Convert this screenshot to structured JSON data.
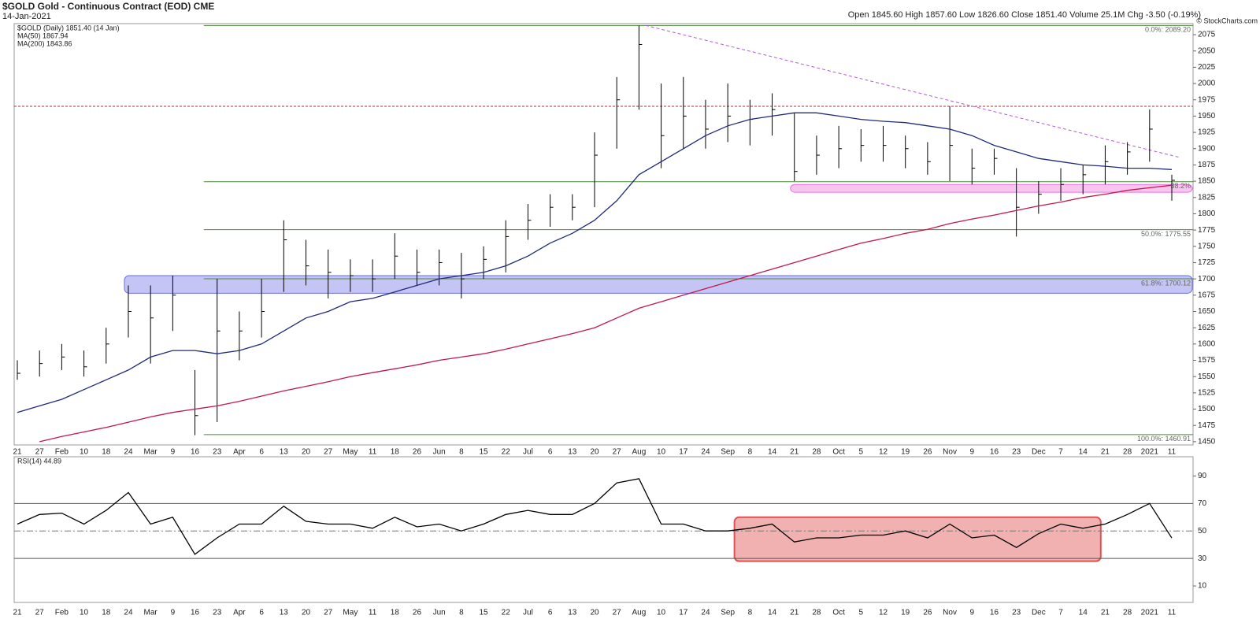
{
  "chart_data": {
    "type": "ohlc",
    "title": "$GOLD Gold - Continuous Contract (EOD) CME",
    "date": "14-Jan-2021",
    "quote": "Open 1845.60 High 1857.60 Low 1826.60 Close 1851.40 Volume 25.1M Chg -3.50 (-0.19%)",
    "credit": "© StockCharts.com",
    "legend": [
      "$GOLD (Daily) 1851.40 (14 Jan)",
      "MA(50) 1867.94",
      "MA(200) 1843.86"
    ],
    "categories": [
      "21",
      "27",
      "Feb",
      "10",
      "18",
      "24",
      "Mar",
      "9",
      "16",
      "23",
      "Apr",
      "6",
      "13",
      "20",
      "27",
      "May",
      "11",
      "18",
      "26",
      "Jun",
      "8",
      "15",
      "22",
      "Jul",
      "6",
      "13",
      "20",
      "27",
      "Aug",
      "10",
      "17",
      "24",
      "Sep",
      "8",
      "14",
      "21",
      "28",
      "Oct",
      "5",
      "12",
      "19",
      "26",
      "Nov",
      "9",
      "16",
      "23",
      "Dec",
      "7",
      "14",
      "21",
      "28",
      "2021",
      "11"
    ],
    "high": [
      1575,
      1590,
      1600,
      1590,
      1625,
      1690,
      1690,
      1705,
      1560,
      1700,
      1650,
      1700,
      1790,
      1760,
      1745,
      1730,
      1730,
      1770,
      1745,
      1745,
      1740,
      1750,
      1790,
      1815,
      1830,
      1830,
      1925,
      2010,
      2089,
      2000,
      2010,
      1975,
      2000,
      1975,
      1985,
      1955,
      1920,
      1935,
      1930,
      1935,
      1920,
      1910,
      1965,
      1900,
      1900,
      1870,
      1850,
      1870,
      1875,
      1905,
      1910,
      1960,
      1860
    ],
    "low": [
      1545,
      1550,
      1560,
      1550,
      1570,
      1610,
      1570,
      1620,
      1460,
      1480,
      1575,
      1610,
      1680,
      1690,
      1670,
      1680,
      1680,
      1700,
      1690,
      1690,
      1670,
      1700,
      1710,
      1760,
      1780,
      1790,
      1810,
      1900,
      1960,
      1870,
      1900,
      1900,
      1910,
      1905,
      1920,
      1850,
      1860,
      1870,
      1880,
      1880,
      1870,
      1860,
      1850,
      1845,
      1860,
      1765,
      1800,
      1820,
      1830,
      1845,
      1860,
      1880,
      1820
    ],
    "close": [
      1555,
      1570,
      1580,
      1565,
      1600,
      1650,
      1640,
      1675,
      1490,
      1620,
      1620,
      1650,
      1760,
      1720,
      1710,
      1705,
      1700,
      1735,
      1710,
      1725,
      1700,
      1730,
      1765,
      1790,
      1810,
      1810,
      1890,
      1975,
      2060,
      1920,
      1950,
      1930,
      1950,
      1945,
      1960,
      1865,
      1890,
      1900,
      1905,
      1905,
      1900,
      1880,
      1905,
      1870,
      1885,
      1810,
      1830,
      1845,
      1860,
      1880,
      1895,
      1930,
      1851.4
    ],
    "color": "#000000",
    "series": [
      {
        "name": "MA(50)",
        "color": "#1f2a7a",
        "values": [
          1495,
          1505,
          1515,
          1530,
          1545,
          1560,
          1580,
          1590,
          1590,
          1585,
          1590,
          1600,
          1620,
          1640,
          1650,
          1665,
          1670,
          1680,
          1690,
          1700,
          1705,
          1710,
          1720,
          1735,
          1755,
          1770,
          1790,
          1820,
          1860,
          1880,
          1900,
          1920,
          1935,
          1945,
          1950,
          1955,
          1955,
          1950,
          1945,
          1942,
          1940,
          1935,
          1930,
          1920,
          1905,
          1895,
          1885,
          1880,
          1875,
          1873,
          1870,
          1870,
          1867.94
        ]
      },
      {
        "name": "MA(200)",
        "color": "#c2184b",
        "values": [
          null,
          1450,
          1458,
          1465,
          1472,
          1480,
          1488,
          1495,
          1500,
          1505,
          1512,
          1520,
          1528,
          1535,
          1542,
          1550,
          1556,
          1562,
          1568,
          1575,
          1580,
          1585,
          1592,
          1600,
          1608,
          1616,
          1625,
          1640,
          1655,
          1665,
          1675,
          1685,
          1695,
          1705,
          1715,
          1725,
          1735,
          1745,
          1755,
          1762,
          1770,
          1776,
          1785,
          1792,
          1798,
          1805,
          1812,
          1818,
          1825,
          1830,
          1836,
          1840,
          1843.86
        ]
      }
    ],
    "ylim": [
      1445,
      2092
    ],
    "yticks": [
      1450,
      1475,
      1500,
      1525,
      1550,
      1575,
      1600,
      1625,
      1650,
      1675,
      1700,
      1725,
      1750,
      1775,
      1800,
      1825,
      1850,
      1875,
      1900,
      1925,
      1950,
      1975,
      2000,
      2025,
      2050,
      2075
    ],
    "fib_levels": [
      {
        "value": 2089.2,
        "label": "0.0%: 2089.20"
      },
      {
        "value": 1849.19,
        "label": "38.2%"
      },
      {
        "value": 1775.55,
        "label": "50.0%: 1775.55"
      },
      {
        "value": 1700.12,
        "label": "61.8%: 1700.12"
      },
      {
        "value": 1460.91,
        "label": "100.0%: 1460.91"
      }
    ],
    "resistance": 1965,
    "trendline": [
      2089.2,
      1887
    ],
    "zones": [
      {
        "low": 1678,
        "high": 1705,
        "color": "#6b6be6"
      },
      {
        "low": 1833,
        "high": 1845,
        "color": "#ee6fdc"
      }
    ],
    "rsi": {
      "label": "RSI(14) 44.89",
      "color": "#000000",
      "values": [
        55,
        62,
        63,
        55,
        65,
        78,
        55,
        60,
        33,
        45,
        55,
        55,
        68,
        57,
        55,
        55,
        52,
        60,
        53,
        55,
        50,
        55,
        62,
        65,
        62,
        62,
        70,
        85,
        88,
        55,
        55,
        50,
        50,
        52,
        55,
        42,
        45,
        45,
        47,
        47,
        50,
        45,
        55,
        45,
        47,
        38,
        48,
        55,
        52,
        55,
        62,
        70,
        44.89
      ],
      "ylim": [
        -2,
        104
      ],
      "yticks": [
        10,
        30,
        50,
        70,
        90
      ],
      "zone": {
        "low": 28,
        "high": 60,
        "color": "#e05252"
      }
    }
  }
}
